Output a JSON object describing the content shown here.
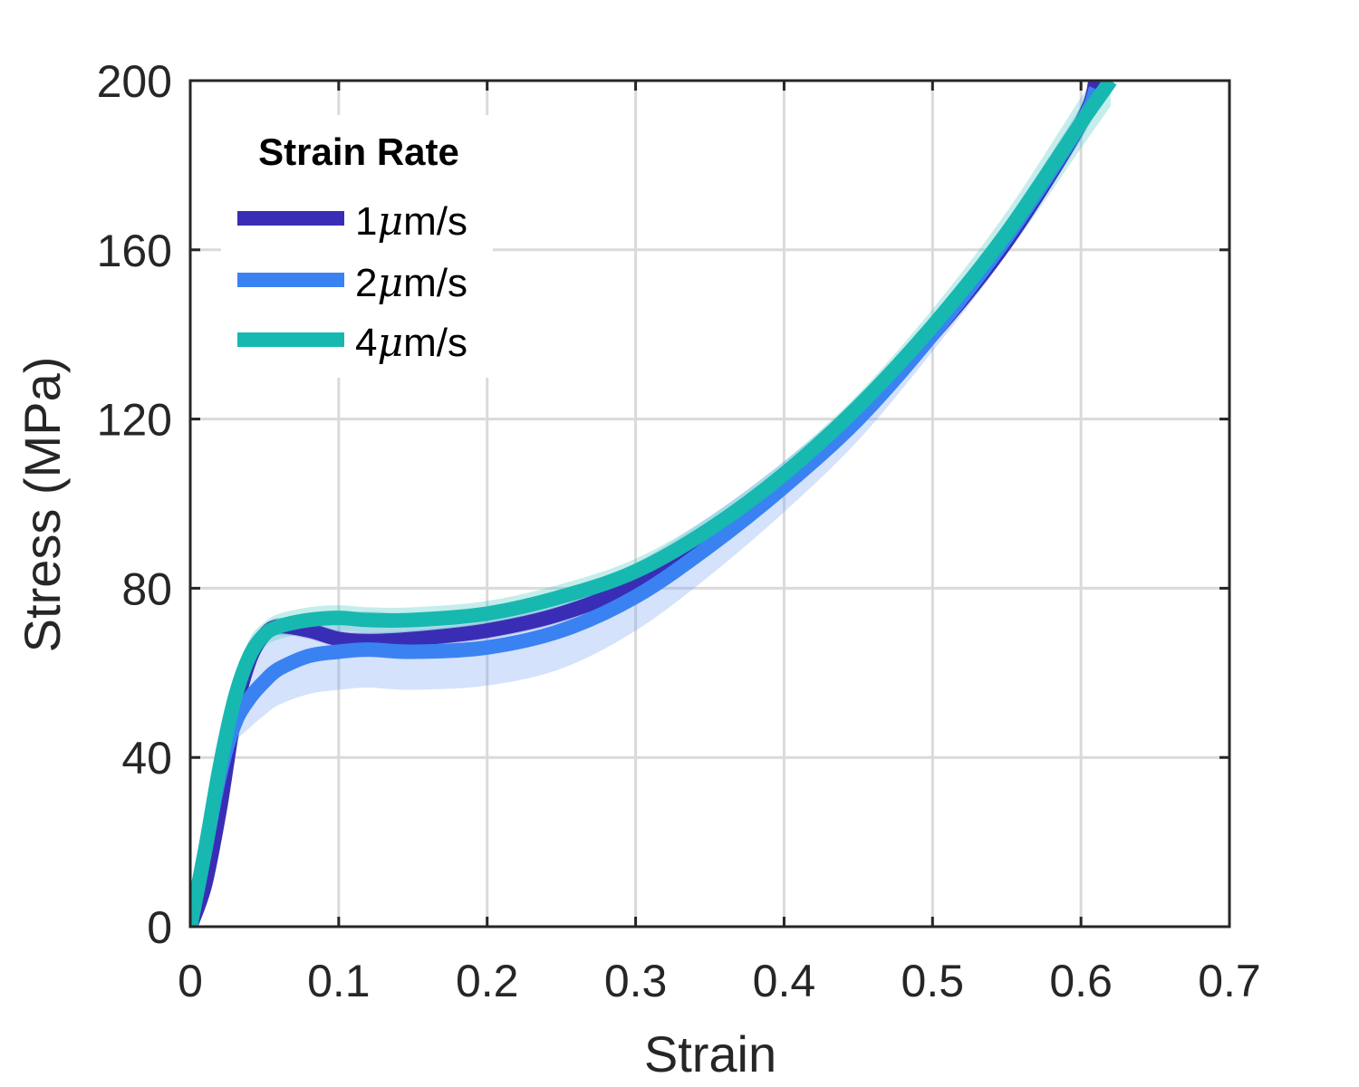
{
  "chart_data": {
    "type": "line",
    "xlabel": "Strain",
    "ylabel": "Stress (MPa)",
    "xlim": [
      0,
      0.7
    ],
    "ylim": [
      0,
      200
    ],
    "xticks": [
      0,
      0.1,
      0.2,
      0.3,
      0.4,
      0.5,
      0.6,
      0.7
    ],
    "xtick_labels": [
      "0",
      "0.1",
      "0.2",
      "0.3",
      "0.4",
      "0.5",
      "0.6",
      "0.7"
    ],
    "yticks": [
      0,
      40,
      80,
      120,
      160,
      200
    ],
    "ytick_labels": [
      "0",
      "40",
      "80",
      "120",
      "160",
      "200"
    ],
    "grid": true,
    "legend": {
      "title": "Strain Rate",
      "placement": "top-left",
      "entries": [
        {
          "prefix": "1",
          "mu": "μ",
          "suffix": "m/s"
        },
        {
          "prefix": "2",
          "mu": "μ",
          "suffix": "m/s"
        },
        {
          "prefix": "4",
          "mu": "μ",
          "suffix": "m/s"
        }
      ]
    },
    "series": [
      {
        "name": "1μm/s",
        "color": "#3a2db5",
        "band_color": "#3a2db5",
        "x": [
          0,
          0.01,
          0.02,
          0.03,
          0.04,
          0.05,
          0.06,
          0.08,
          0.1,
          0.12,
          0.15,
          0.2,
          0.25,
          0.3,
          0.35,
          0.4,
          0.45,
          0.5,
          0.55,
          0.6,
          0.61
        ],
        "y": [
          0,
          10,
          28,
          50,
          63,
          69,
          71,
          70,
          68,
          67.5,
          68,
          70,
          74,
          81,
          92,
          106,
          122,
          140,
          162,
          190,
          200
        ],
        "band": [
          1.5,
          1.5,
          2,
          2,
          2,
          2,
          2,
          2,
          2,
          2,
          2,
          2,
          2,
          2,
          2,
          2,
          2,
          2,
          2,
          2,
          2
        ]
      },
      {
        "name": "2μm/s",
        "color": "#3a82f2",
        "band_color": "#6fa0f2",
        "x": [
          0,
          0.01,
          0.02,
          0.03,
          0.04,
          0.05,
          0.06,
          0.08,
          0.1,
          0.12,
          0.15,
          0.2,
          0.25,
          0.3,
          0.35,
          0.4,
          0.45,
          0.5,
          0.55,
          0.6,
          0.61
        ],
        "y": [
          0,
          18,
          36,
          48,
          54,
          58,
          61,
          64,
          65,
          65.5,
          65,
          66,
          70,
          78,
          90,
          104,
          120,
          140,
          163,
          190,
          198
        ],
        "band": [
          2,
          3,
          4,
          5,
          7,
          8,
          8.5,
          9,
          9,
          9,
          9,
          9,
          9,
          8,
          7,
          6,
          5,
          4,
          4,
          4,
          4
        ]
      },
      {
        "name": "4μm/s",
        "color": "#17b8b0",
        "band_color": "#40c4bd",
        "x": [
          0,
          0.01,
          0.02,
          0.03,
          0.04,
          0.05,
          0.06,
          0.08,
          0.1,
          0.12,
          0.15,
          0.2,
          0.25,
          0.3,
          0.35,
          0.4,
          0.45,
          0.5,
          0.55,
          0.6,
          0.62
        ],
        "y": [
          0,
          18,
          38,
          54,
          64,
          69,
          71,
          72.5,
          73,
          72.5,
          72.5,
          74,
          78,
          84,
          94,
          107,
          123,
          142,
          164,
          190,
          200
        ],
        "band": [
          3,
          4,
          4,
          4,
          4,
          3,
          3,
          3,
          3,
          3,
          3,
          3,
          3,
          3,
          3,
          3,
          3,
          4,
          5,
          6,
          6
        ]
      }
    ]
  }
}
